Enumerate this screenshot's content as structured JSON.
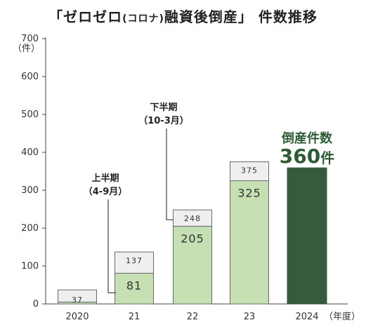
{
  "title": {
    "part1": "「ゼロゼロ",
    "paren": "(コロナ)",
    "part2": "融資後倒産」 件数推移"
  },
  "chart_data": {
    "type": "bar",
    "stacked": true,
    "categories": [
      "2020",
      "21",
      "22",
      "23",
      "2024"
    ],
    "series": [
      {
        "name": "上半期（4-9月）",
        "values": [
          5,
          81,
          205,
          325,
          360
        ],
        "label_text": [
          "",
          "81",
          "205",
          "325",
          ""
        ]
      },
      {
        "name": "下半期（10-3月）",
        "values": [
          37,
          137,
          248,
          375,
          0
        ],
        "label_text": [
          "37",
          "137",
          "248",
          "375",
          ""
        ]
      }
    ],
    "yticks": [
      "0",
      "100",
      "200",
      "300",
      "400",
      "500",
      "600",
      "700"
    ],
    "ylim": [
      0,
      700
    ],
    "yunit": "（件）",
    "xunit": "（年度）",
    "annotations": {
      "first_half": {
        "line1": "上半期",
        "line2": "（4-9月）"
      },
      "second_half": {
        "line1": "下半期",
        "line2": "（10-3月）"
      }
    },
    "highlight": {
      "caption": "倒産件数",
      "value": "360",
      "unit": "件"
    },
    "colors": {
      "first_half": "#c6e0b4",
      "second_half": "#efefef",
      "highlight": "#375a3e",
      "bar_stroke": "#6a6a6a"
    },
    "grid": false
  }
}
